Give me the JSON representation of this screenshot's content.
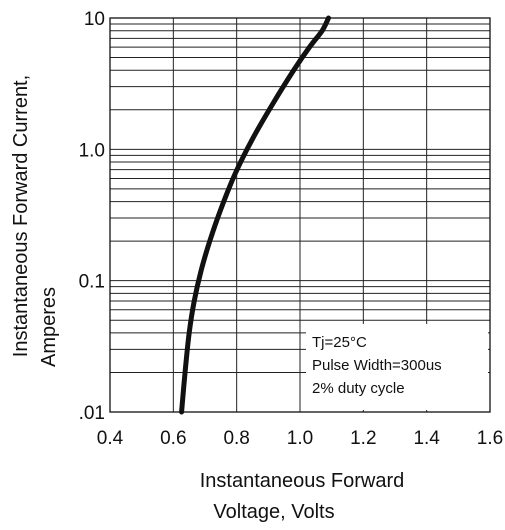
{
  "chart_data": {
    "type": "line",
    "xlabel_lines": [
      "Instantaneous Forward",
      "Voltage, Volts"
    ],
    "ylabel_lines": [
      "Instantaneous Forward Current,",
      "Amperes"
    ],
    "x_scale": "linear",
    "y_scale": "log",
    "xlim": [
      0.4,
      1.6
    ],
    "ylim": [
      0.01,
      10
    ],
    "x_ticks": [
      0.4,
      0.6,
      0.8,
      1.0,
      1.2,
      1.4,
      1.6
    ],
    "x_tick_labels": [
      "0.4",
      "0.6",
      "0.8",
      "1.0",
      "1.2",
      "1.4",
      "1.6"
    ],
    "y_ticks": [
      0.01,
      0.1,
      1.0,
      10
    ],
    "y_tick_labels": [
      ".01",
      "0.1",
      "1.0",
      "10"
    ],
    "grid": true,
    "annotation": {
      "line1_prefix": "Tj=25",
      "line1_unit": "°C",
      "line2": "Pulse Width=300us",
      "line3": "2% duty cycle",
      "placement": "lower-right"
    },
    "series": [
      {
        "x": [
          0.626,
          0.637,
          0.65,
          0.666,
          0.688,
          0.715,
          0.75,
          0.795,
          0.85,
          0.913,
          0.98,
          1.03,
          1.07,
          1.09
        ],
        "y": [
          0.01,
          0.02,
          0.04,
          0.07,
          0.12,
          0.2,
          0.35,
          0.65,
          1.2,
          2.2,
          4.0,
          6.0,
          8.0,
          10.0
        ],
        "color": "#111111"
      }
    ]
  }
}
